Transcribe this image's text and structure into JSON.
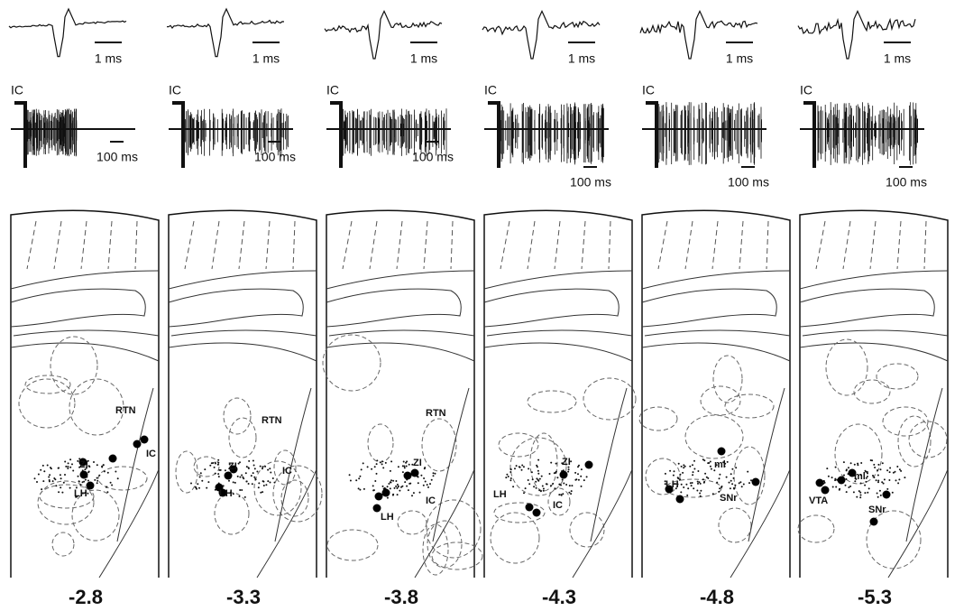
{
  "panels": [
    {
      "spike_scale": "1 ms",
      "stim_label": "IC",
      "raster_scale": "100 ms",
      "labels": [
        "RTN",
        "IC",
        "ZI",
        "LH"
      ],
      "coordinate": -2.8
    },
    {
      "spike_scale": "1 ms",
      "stim_label": "IC",
      "raster_scale": "100 ms",
      "labels": [
        "RTN",
        "ZI",
        "IC",
        "LH"
      ],
      "coordinate": -3.3
    },
    {
      "spike_scale": "1 ms",
      "stim_label": "IC",
      "raster_scale": "100 ms",
      "labels": [
        "RTN",
        "ZI",
        "LH",
        "IC"
      ],
      "coordinate": -3.8
    },
    {
      "spike_scale": "1 ms",
      "stim_label": "IC",
      "raster_scale": "100 ms",
      "labels": [
        "ZI",
        "LH",
        "IC"
      ],
      "coordinate": -4.3
    },
    {
      "spike_scale": "1 ms",
      "stim_label": "IC",
      "raster_scale": "100 ms",
      "labels": [
        "ml",
        "LH",
        "SNr"
      ],
      "coordinate": -4.8
    },
    {
      "spike_scale": "1 ms",
      "stim_label": "IC",
      "raster_scale": "100 ms",
      "labels": [
        "VTA",
        "ml",
        "SNr"
      ],
      "coordinate": -5.3
    }
  ]
}
